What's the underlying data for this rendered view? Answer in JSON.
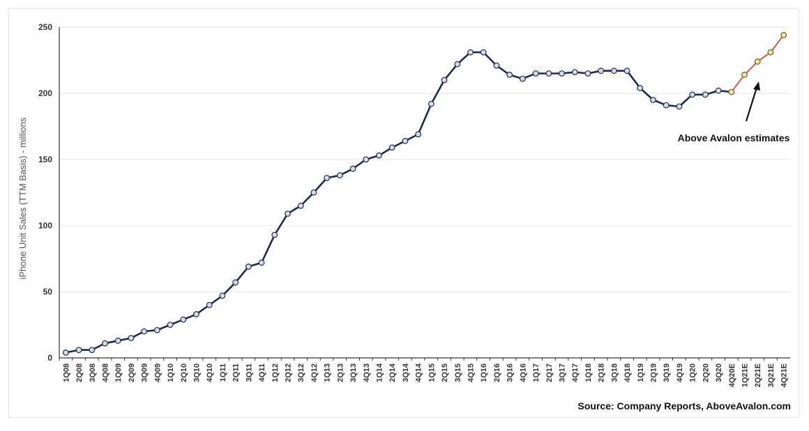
{
  "chart_data": {
    "type": "line",
    "ylabel": "iPhone Unit Sales (TTM Basis) - millions",
    "xlabel": "",
    "ylim": [
      0,
      250
    ],
    "yticks": [
      0,
      50,
      100,
      150,
      200,
      250
    ],
    "grid": true,
    "categories": [
      "1Q08",
      "2Q08",
      "3Q08",
      "4Q08",
      "1Q09",
      "2Q09",
      "3Q09",
      "4Q09",
      "1Q10",
      "2Q10",
      "3Q10",
      "4Q10",
      "1Q11",
      "2Q11",
      "3Q11",
      "4Q11",
      "1Q12",
      "2Q12",
      "3Q12",
      "4Q12",
      "1Q13",
      "2Q13",
      "3Q13",
      "4Q13",
      "1Q14",
      "2Q14",
      "3Q14",
      "4Q14",
      "1Q15",
      "2Q15",
      "3Q15",
      "4Q15",
      "1Q16",
      "2Q16",
      "3Q16",
      "4Q16",
      "1Q17",
      "2Q17",
      "3Q17",
      "4Q17",
      "1Q18",
      "2Q18",
      "3Q18",
      "4Q18",
      "1Q19",
      "2Q19",
      "3Q19",
      "4Q19",
      "1Q20",
      "2Q20",
      "3Q20",
      "4Q20E",
      "1Q21E",
      "2Q21E",
      "3Q21E",
      "4Q21E"
    ],
    "series": [
      {
        "values": [
          4,
          6,
          6,
          11,
          13,
          15,
          20,
          21,
          25,
          29,
          33,
          40,
          47,
          57,
          69,
          72,
          93,
          109,
          115,
          125,
          136,
          138,
          143,
          150,
          153,
          159,
          164,
          169,
          192,
          210,
          222,
          231,
          231,
          221,
          214,
          211,
          215,
          215,
          215,
          216,
          215,
          217,
          217,
          217,
          204,
          195,
          191,
          190,
          199,
          199,
          202,
          201,
          214,
          224,
          231,
          244
        ],
        "estimate_start_index": 51,
        "color": "#1e2a4a",
        "estimate_color": "#d9534f"
      }
    ],
    "annotations": [
      {
        "text": "Above Avalon estimates",
        "arrow_to_category": "2Q21E"
      }
    ],
    "source_note": "Source: Company Reports, AboveAvalon.com"
  }
}
